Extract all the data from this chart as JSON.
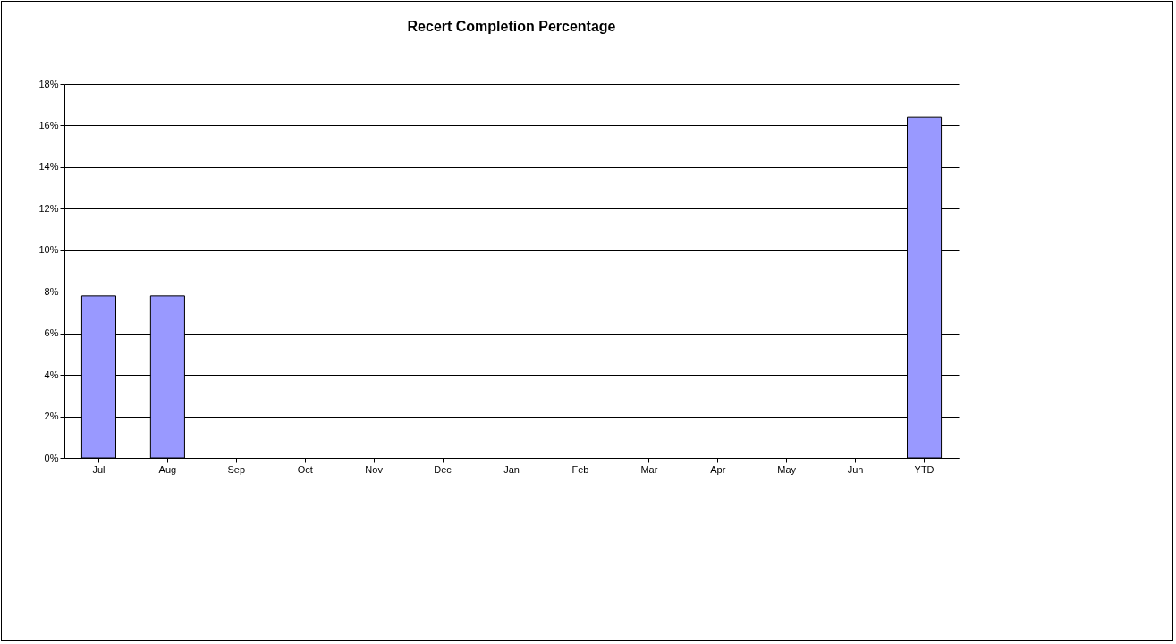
{
  "chart_data": {
    "type": "bar",
    "title": "Recert Completion Percentage",
    "categories": [
      "Jul",
      "Aug",
      "Sep",
      "Oct",
      "Nov",
      "Dec",
      "Jan",
      "Feb",
      "Mar",
      "Apr",
      "May",
      "Jun",
      "YTD"
    ],
    "values": [
      7.8,
      7.8,
      null,
      null,
      null,
      null,
      null,
      null,
      null,
      null,
      null,
      null,
      16.4
    ],
    "color": "#9999ff",
    "ylim": [
      0,
      18
    ],
    "yticks": [
      {
        "value": 0,
        "label": "0%"
      },
      {
        "value": 2,
        "label": "2%"
      },
      {
        "value": 4,
        "label": "4%"
      },
      {
        "value": 6,
        "label": "6%"
      },
      {
        "value": 8,
        "label": "8%"
      },
      {
        "value": 10,
        "label": "10%"
      },
      {
        "value": 12,
        "label": "12%"
      },
      {
        "value": 14,
        "label": "14%"
      },
      {
        "value": 16,
        "label": "16%"
      },
      {
        "value": 18,
        "label": "18%"
      }
    ],
    "grid": "y"
  }
}
